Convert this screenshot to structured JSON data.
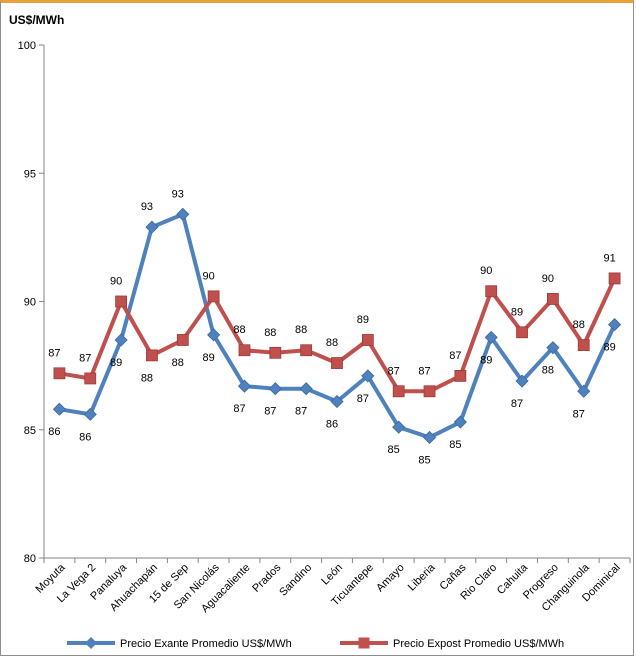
{
  "chart_data": {
    "type": "line",
    "ylabel": "US$/MWh",
    "ylim": [
      80,
      100
    ],
    "yticks": [
      80,
      85,
      90,
      95,
      100
    ],
    "grid": false,
    "legend_position": "bottom",
    "categories": [
      "Moyuta",
      "La Vega 2",
      "Panaluya",
      "Ahuachapán",
      "15 de Sep",
      "San Nicolás",
      "Aguacaliente",
      "Prados",
      "Sandino",
      "León",
      "Ticuantepe",
      "Amayo",
      "Liberia",
      "Cañas",
      "Rio Claro",
      "Cahuita",
      "Progreso",
      "Changuinola",
      "Dominical"
    ],
    "series": [
      {
        "name": "Precio Exante Promedio US$/MWh",
        "color": "#4f81bd",
        "marker": "diamond",
        "values": [
          85.8,
          85.6,
          88.5,
          92.9,
          93.4,
          88.7,
          86.7,
          86.6,
          86.6,
          86.1,
          87.1,
          85.1,
          84.7,
          85.3,
          88.6,
          86.9,
          88.2,
          86.5,
          89.1
        ],
        "labels": [
          "86",
          "86",
          "89",
          "93",
          "93",
          "89",
          "87",
          "87",
          "87",
          "86",
          "87",
          "85",
          "85",
          "85",
          "89",
          "87",
          "88",
          "87",
          "89"
        ]
      },
      {
        "name": "Precio Expost Promedio US$/MWh",
        "color": "#c0504d",
        "marker": "square",
        "values": [
          87.2,
          87.0,
          90.0,
          87.9,
          88.5,
          90.2,
          88.1,
          88.0,
          88.1,
          87.6,
          88.5,
          86.5,
          86.5,
          87.1,
          90.4,
          88.8,
          90.1,
          88.3,
          90.9
        ],
        "labels": [
          "87",
          "87",
          "90",
          "88",
          "88",
          "90",
          "88",
          "88",
          "88",
          "88",
          "89",
          "87",
          "87",
          "87",
          "90",
          "89",
          "90",
          "88",
          "91"
        ]
      }
    ]
  }
}
